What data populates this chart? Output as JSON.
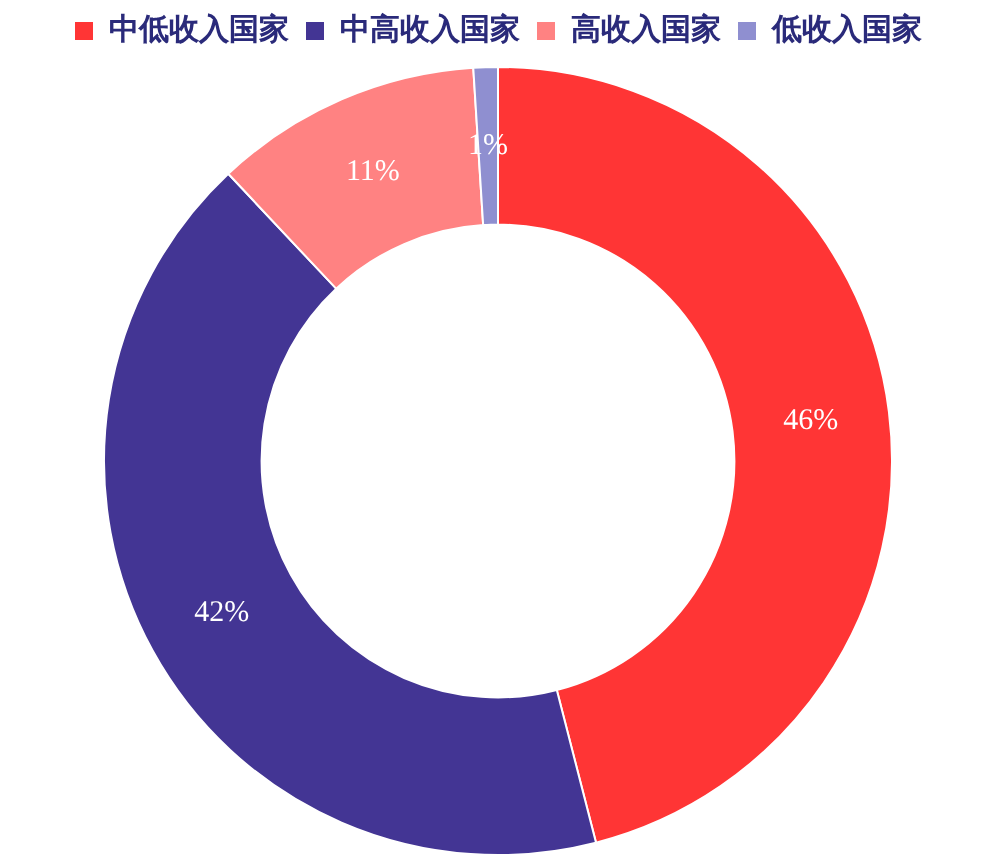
{
  "chart_data": {
    "type": "donut",
    "categories": [
      "中低收入国家",
      "中高收入国家",
      "高收入国家",
      "低收入国家"
    ],
    "values": [
      46,
      42,
      11,
      1
    ],
    "colors": [
      "#ff3535",
      "#433594",
      "#ff8282",
      "#8f8fd0"
    ],
    "value_labels": [
      "46%",
      "42%",
      "11%",
      "1%"
    ],
    "legend": "top"
  }
}
